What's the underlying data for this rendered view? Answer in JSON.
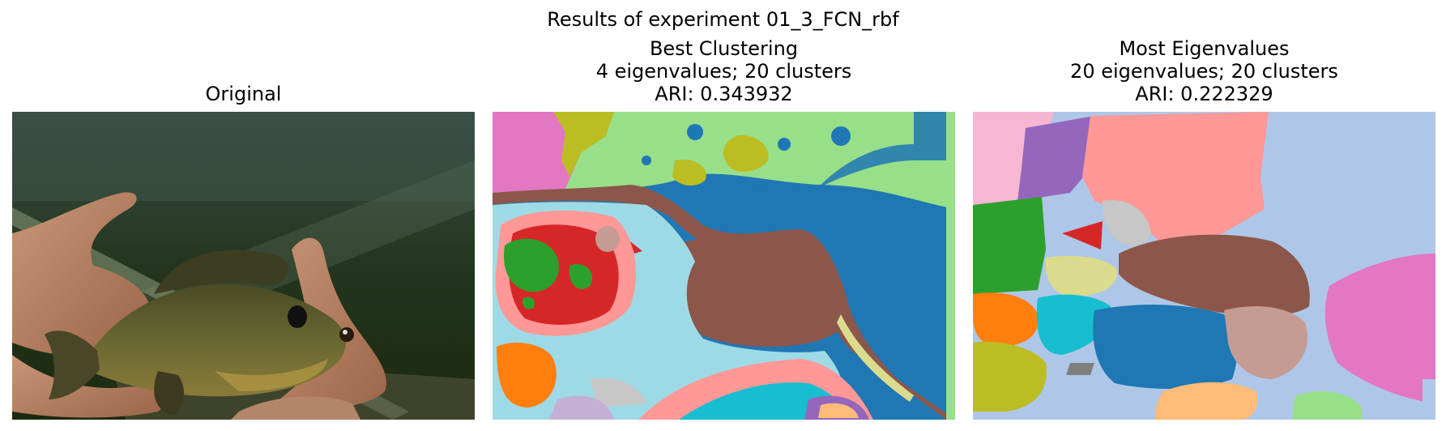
{
  "figure": {
    "suptitle": "Results of experiment 01_3_FCN_rbf"
  },
  "panels": [
    {
      "title_lines": [
        "Original"
      ]
    },
    {
      "title_lines": [
        "Best Clustering",
        "4 eigenvalues; 20 clusters",
        "ARI: 0.343932"
      ]
    },
    {
      "title_lines": [
        "Most Eigenvalues",
        "20 eigenvalues; 20 clusters",
        "ARI: 0.222329"
      ]
    }
  ],
  "colors": {
    "blue": "#1f77b4",
    "light_blue": "#aec7e8",
    "orange": "#ff7f0e",
    "light_orange": "#ffbb78",
    "green": "#2ca02c",
    "light_green": "#98df8a",
    "red": "#d62728",
    "pink": "#ff9896",
    "purple": "#9467bd",
    "brown": "#8c564b",
    "tan": "#c49c94",
    "magenta": "#e377c2",
    "light_magenta": "#f7b6d2",
    "gray": "#7f7f7f",
    "light_gray": "#c7c7c7",
    "olive": "#bcbd22",
    "khaki": "#dbdb8d",
    "cyan": "#17becf",
    "light_cyan": "#9edae5"
  }
}
